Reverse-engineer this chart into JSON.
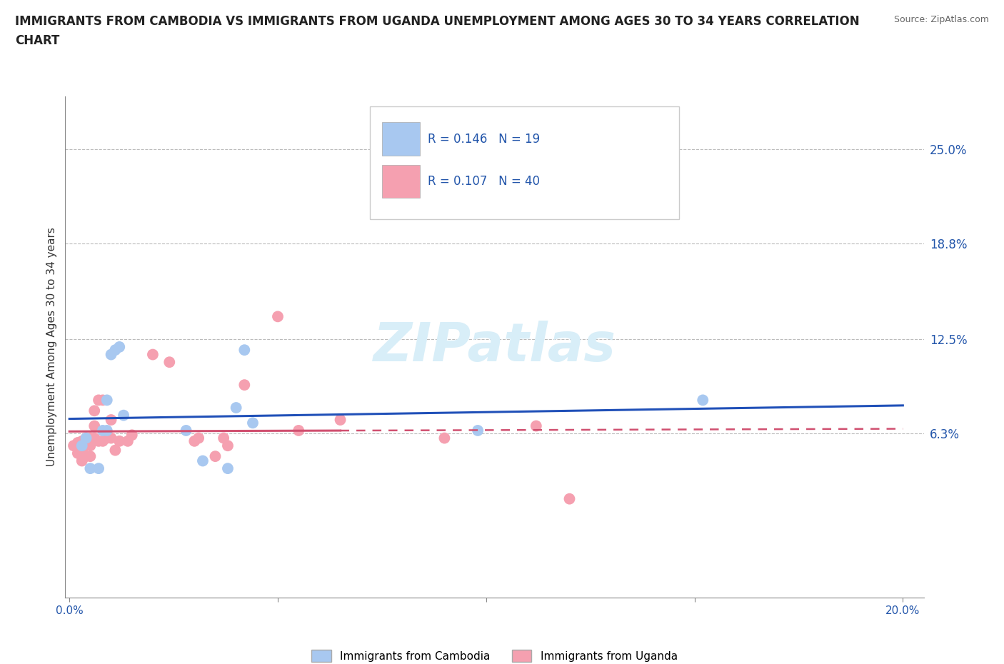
{
  "title": "IMMIGRANTS FROM CAMBODIA VS IMMIGRANTS FROM UGANDA UNEMPLOYMENT AMONG AGES 30 TO 34 YEARS CORRELATION\nCHART",
  "source_text": "Source: ZipAtlas.com",
  "ylabel": "Unemployment Among Ages 30 to 34 years",
  "xlim": [
    -0.001,
    0.205
  ],
  "ylim": [
    -0.045,
    0.285
  ],
  "ytick_vals": [
    0.063,
    0.125,
    0.188,
    0.25
  ],
  "ytick_labels": [
    "6.3%",
    "12.5%",
    "18.8%",
    "25.0%"
  ],
  "xtick_vals": [
    0.0,
    0.05,
    0.1,
    0.15,
    0.2
  ],
  "xtick_labels": [
    "0.0%",
    "",
    "",
    "",
    "20.0%"
  ],
  "hlines": [
    0.063,
    0.125,
    0.188,
    0.25
  ],
  "R_cambodia": 0.146,
  "N_cambodia": 19,
  "R_uganda": 0.107,
  "N_uganda": 40,
  "color_cambodia": "#a8c8f0",
  "color_uganda": "#f5a0b0",
  "line_color_cambodia": "#2050b8",
  "line_color_uganda": "#d05070",
  "watermark_color": "#d8eef8",
  "cambodia_x": [
    0.003,
    0.004,
    0.005,
    0.007,
    0.008,
    0.009,
    0.009,
    0.01,
    0.011,
    0.012,
    0.013,
    0.028,
    0.032,
    0.038,
    0.04,
    0.042,
    0.044,
    0.098,
    0.152
  ],
  "cambodia_y": [
    0.055,
    0.06,
    0.04,
    0.04,
    0.065,
    0.085,
    0.065,
    0.115,
    0.118,
    0.12,
    0.075,
    0.065,
    0.045,
    0.04,
    0.08,
    0.118,
    0.07,
    0.065,
    0.085
  ],
  "uganda_x": [
    0.001,
    0.002,
    0.002,
    0.003,
    0.003,
    0.003,
    0.004,
    0.004,
    0.004,
    0.005,
    0.005,
    0.005,
    0.006,
    0.006,
    0.006,
    0.007,
    0.007,
    0.008,
    0.008,
    0.009,
    0.01,
    0.01,
    0.011,
    0.012,
    0.014,
    0.015,
    0.02,
    0.024,
    0.03,
    0.031,
    0.035,
    0.037,
    0.038,
    0.042,
    0.05,
    0.055,
    0.065,
    0.09,
    0.112,
    0.12
  ],
  "uganda_y": [
    0.055,
    0.05,
    0.057,
    0.058,
    0.052,
    0.045,
    0.048,
    0.06,
    0.055,
    0.048,
    0.055,
    0.06,
    0.06,
    0.068,
    0.078,
    0.058,
    0.085,
    0.058,
    0.085,
    0.06,
    0.06,
    0.072,
    0.052,
    0.058,
    0.058,
    0.062,
    0.115,
    0.11,
    0.058,
    0.06,
    0.048,
    0.06,
    0.055,
    0.095,
    0.14,
    0.065,
    0.072,
    0.06,
    0.068,
    0.02
  ],
  "legend_label_cambodia": "Immigrants from Cambodia",
  "legend_label_uganda": "Immigrants from Uganda"
}
